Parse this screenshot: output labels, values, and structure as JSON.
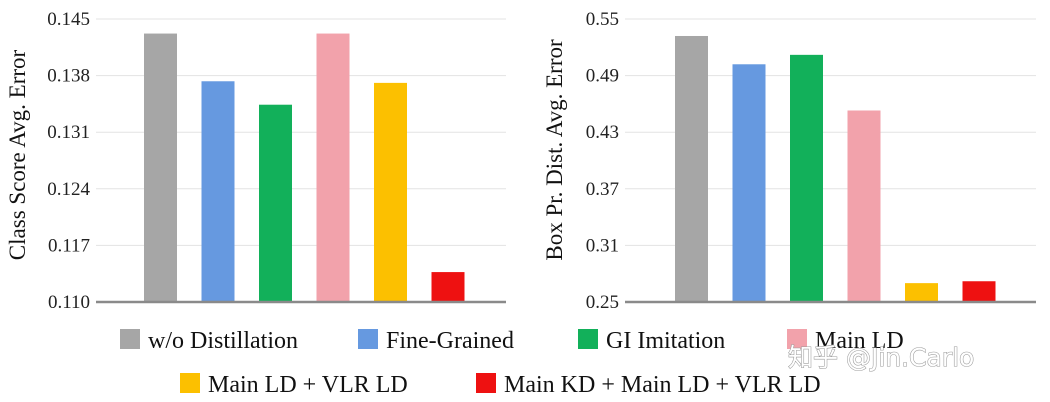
{
  "chart_data": [
    {
      "type": "bar",
      "title": "",
      "xlabel": "",
      "ylabel": "Class Score  Avg. Error",
      "ylim": [
        0.11,
        0.145
      ],
      "yticks": [
        "0.110",
        "0.117",
        "0.124",
        "0.131",
        "0.138",
        "0.145"
      ],
      "grid": true,
      "categories": [
        "w/o Distillation",
        "Fine-Grained",
        "GI Imitation",
        "Main LD",
        "Main LD + VLR LD",
        "Main KD + Main LD + VLR LD"
      ],
      "values": [
        0.1432,
        0.1373,
        0.1344,
        0.1432,
        0.1371,
        0.1137
      ]
    },
    {
      "type": "bar",
      "title": "",
      "xlabel": "",
      "ylabel": "Box Pr. Dist. Avg. Error",
      "ylim": [
        0.25,
        0.55
      ],
      "yticks": [
        "0.25",
        "0.31",
        "0.37",
        "0.43",
        "0.49",
        "0.55"
      ],
      "grid": true,
      "categories": [
        "w/o Distillation",
        "Fine-Grained",
        "GI Imitation",
        "Main LD",
        "Main LD + VLR LD",
        "Main KD + Main LD + VLR LD"
      ],
      "values": [
        0.532,
        0.502,
        0.512,
        0.453,
        0.27,
        0.272
      ]
    }
  ],
  "legend": [
    {
      "label": "w/o Distillation",
      "color": "#a6a6a6"
    },
    {
      "label": "Fine-Grained",
      "color": "#6699e0"
    },
    {
      "label": "GI Imitation",
      "color": "#12b05a"
    },
    {
      "label": "Main LD",
      "color": "#f2a2ab"
    },
    {
      "label": "Main LD + VLR LD",
      "color": "#fcc000"
    },
    {
      "label": "Main KD + Main LD + VLR LD",
      "color": "#ee1111"
    }
  ],
  "watermark": "知乎 @Jin.Carlo"
}
